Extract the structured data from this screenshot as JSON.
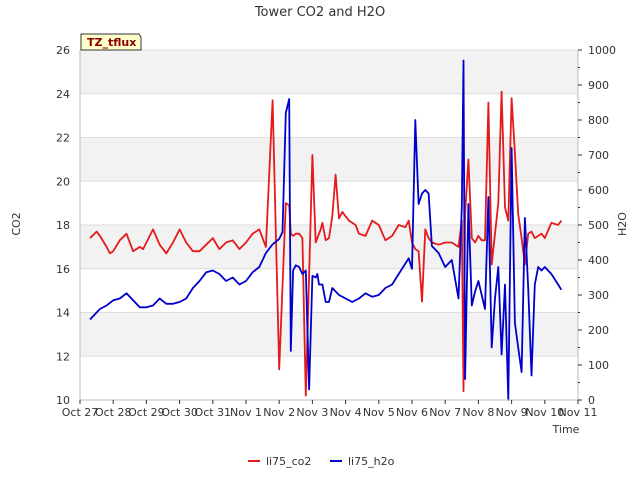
{
  "chart_data": {
    "type": "line",
    "title": "Tower CO2 and H2O",
    "site_tag": "TZ_tflux",
    "xlabel": "Time",
    "ylabel": "CO2",
    "y2label": "H2O",
    "x_tick_labels": [
      "Oct 27",
      "Oct 28",
      "Oct 29",
      "Oct 30",
      "Oct 31",
      "Nov 1",
      "Nov 2",
      "Nov 3",
      "Nov 4",
      "Nov 5",
      "Nov 6",
      "Nov 7",
      "Nov 8",
      "Nov 9",
      "Nov 10",
      "Nov 11"
    ],
    "xlim": [
      0,
      15
    ],
    "ylim": [
      10,
      26
    ],
    "y_ticks": [
      10,
      12,
      14,
      16,
      18,
      20,
      22,
      24,
      26
    ],
    "y2lim": [
      0,
      1000
    ],
    "y2_ticks": [
      0,
      100,
      200,
      300,
      400,
      500,
      600,
      700,
      800,
      900,
      1000
    ],
    "series": [
      {
        "name": "li75_co2",
        "axis": "left",
        "color": "#e41a1c",
        "x": [
          0.3,
          0.5,
          0.6,
          0.8,
          0.9,
          1.0,
          1.2,
          1.4,
          1.6,
          1.8,
          1.9,
          2.0,
          2.2,
          2.4,
          2.6,
          2.8,
          3.0,
          3.2,
          3.4,
          3.6,
          3.8,
          4.0,
          4.2,
          4.4,
          4.6,
          4.8,
          5.0,
          5.2,
          5.4,
          5.6,
          5.8,
          6.0,
          6.2,
          6.3,
          6.35,
          6.42,
          6.5,
          6.6,
          6.7,
          6.8,
          7.0,
          7.1,
          7.2,
          7.25,
          7.3,
          7.4,
          7.5,
          7.6,
          7.7,
          7.8,
          7.9,
          8.0,
          8.1,
          8.2,
          8.3,
          8.4,
          8.6,
          8.8,
          9.0,
          9.2,
          9.4,
          9.6,
          9.8,
          9.9,
          10.0,
          10.1,
          10.2,
          10.3,
          10.4,
          10.5,
          10.6,
          10.8,
          11.0,
          11.2,
          11.4,
          11.5,
          11.55,
          11.6,
          11.7,
          11.8,
          11.9,
          12.0,
          12.1,
          12.2,
          12.3,
          12.4,
          12.5,
          12.6,
          12.7,
          12.8,
          12.9,
          13.0,
          13.1,
          13.2,
          13.3,
          13.4,
          13.5,
          13.6,
          13.7,
          13.8,
          13.9,
          14.0,
          14.2,
          14.4,
          14.5
        ],
        "values": [
          17.4,
          17.7,
          17.5,
          17.0,
          16.7,
          16.8,
          17.3,
          17.6,
          16.8,
          17.0,
          16.9,
          17.2,
          17.8,
          17.1,
          16.7,
          17.2,
          17.8,
          17.2,
          16.8,
          16.8,
          17.1,
          17.4,
          16.9,
          17.2,
          17.3,
          16.9,
          17.2,
          17.6,
          17.8,
          17.0,
          23.7,
          11.4,
          19.0,
          18.9,
          17.6,
          17.5,
          17.6,
          17.6,
          17.4,
          10.2,
          21.2,
          17.2,
          17.6,
          17.8,
          18.1,
          17.3,
          17.4,
          18.4,
          20.3,
          18.3,
          18.6,
          18.4,
          18.2,
          18.1,
          18.0,
          17.6,
          17.5,
          18.2,
          18.0,
          17.3,
          17.5,
          18.0,
          17.9,
          18.2,
          17.2,
          16.9,
          16.8,
          14.5,
          17.8,
          17.4,
          17.2,
          17.1,
          17.2,
          17.2,
          17.0,
          18.2,
          10.4,
          18.5,
          21.0,
          17.4,
          17.2,
          17.5,
          17.3,
          17.3,
          23.6,
          16.2,
          17.6,
          19.0,
          24.1,
          18.8,
          18.2,
          23.8,
          21.3,
          18.5,
          17.4,
          16.2,
          17.6,
          17.7,
          17.4,
          17.5,
          17.6,
          17.4,
          18.1,
          18.0,
          18.2
        ]
      },
      {
        "name": "li75_h2o",
        "axis": "right",
        "color": "#0000cc",
        "x": [
          0.3,
          0.4,
          0.6,
          0.8,
          1.0,
          1.2,
          1.4,
          1.6,
          1.8,
          2.0,
          2.2,
          2.4,
          2.6,
          2.8,
          3.0,
          3.2,
          3.4,
          3.6,
          3.8,
          4.0,
          4.2,
          4.4,
          4.6,
          4.8,
          5.0,
          5.2,
          5.4,
          5.6,
          5.8,
          6.0,
          6.1,
          6.2,
          6.3,
          6.35,
          6.42,
          6.5,
          6.6,
          6.7,
          6.8,
          6.9,
          7.0,
          7.1,
          7.15,
          7.2,
          7.3,
          7.4,
          7.5,
          7.6,
          7.8,
          8.0,
          8.2,
          8.4,
          8.6,
          8.8,
          9.0,
          9.2,
          9.4,
          9.6,
          9.8,
          9.9,
          10.0,
          10.1,
          10.2,
          10.3,
          10.4,
          10.5,
          10.6,
          10.8,
          11.0,
          11.2,
          11.4,
          11.5,
          11.55,
          11.6,
          11.7,
          11.8,
          11.9,
          12.0,
          12.1,
          12.2,
          12.3,
          12.4,
          12.5,
          12.6,
          12.7,
          12.8,
          12.9,
          13.0,
          13.1,
          13.2,
          13.3,
          13.4,
          13.5,
          13.6,
          13.7,
          13.8,
          13.9,
          14.0,
          14.2,
          14.4,
          14.5
        ],
        "values": [
          230,
          240,
          260,
          270,
          285,
          290,
          305,
          285,
          265,
          265,
          270,
          290,
          275,
          275,
          280,
          290,
          320,
          340,
          365,
          370,
          360,
          340,
          350,
          330,
          340,
          365,
          380,
          420,
          445,
          460,
          480,
          820,
          860,
          140,
          370,
          385,
          380,
          360,
          370,
          30,
          355,
          350,
          360,
          330,
          330,
          280,
          280,
          320,
          300,
          290,
          280,
          290,
          305,
          295,
          300,
          320,
          330,
          360,
          390,
          405,
          375,
          800,
          560,
          590,
          600,
          590,
          440,
          420,
          380,
          400,
          290,
          550,
          970,
          60,
          560,
          270,
          310,
          340,
          300,
          260,
          580,
          150,
          290,
          380,
          130,
          330,
          0,
          720,
          220,
          150,
          80,
          520,
          320,
          70,
          330,
          380,
          370,
          380,
          360,
          330,
          315
        ]
      }
    ],
    "legend": [
      "li75_co2",
      "li75_h2o"
    ],
    "legend_position": "bottom-center"
  }
}
